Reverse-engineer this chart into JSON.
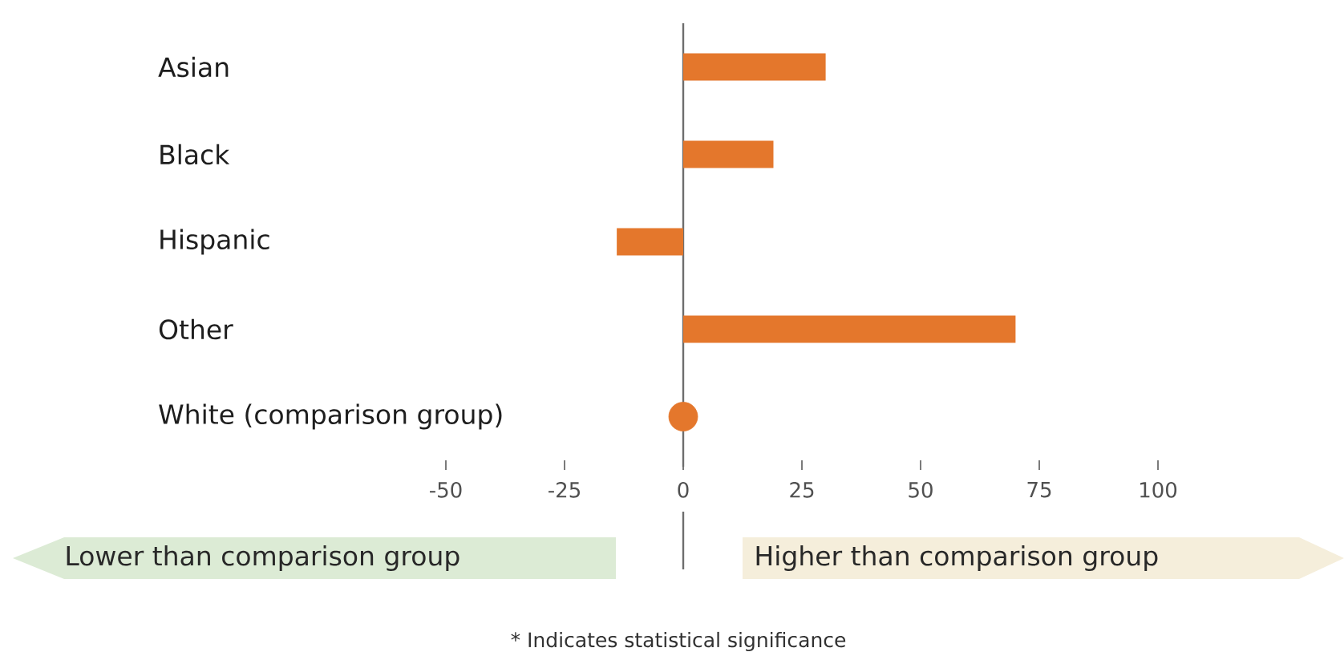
{
  "chart_data": {
    "type": "bar",
    "orientation": "horizontal",
    "categories": [
      "Asian",
      "Black",
      "Hispanic",
      "Other",
      "White (comparison group)"
    ],
    "series": [
      {
        "color": "#e4772c",
        "values": [
          30,
          19,
          -14,
          70,
          null
        ]
      },
      {
        "type": "scatter",
        "color": "#e4772c",
        "marker": "circle",
        "values": [
          null,
          null,
          null,
          null,
          0
        ]
      }
    ],
    "xlim": [
      -50,
      100
    ],
    "xticks": [
      -50,
      -25,
      0,
      25,
      50,
      75,
      100
    ],
    "annotations": [
      "Lower than comparison group",
      "Higher than comparison group",
      "* Indicates statistical significance"
    ]
  }
}
